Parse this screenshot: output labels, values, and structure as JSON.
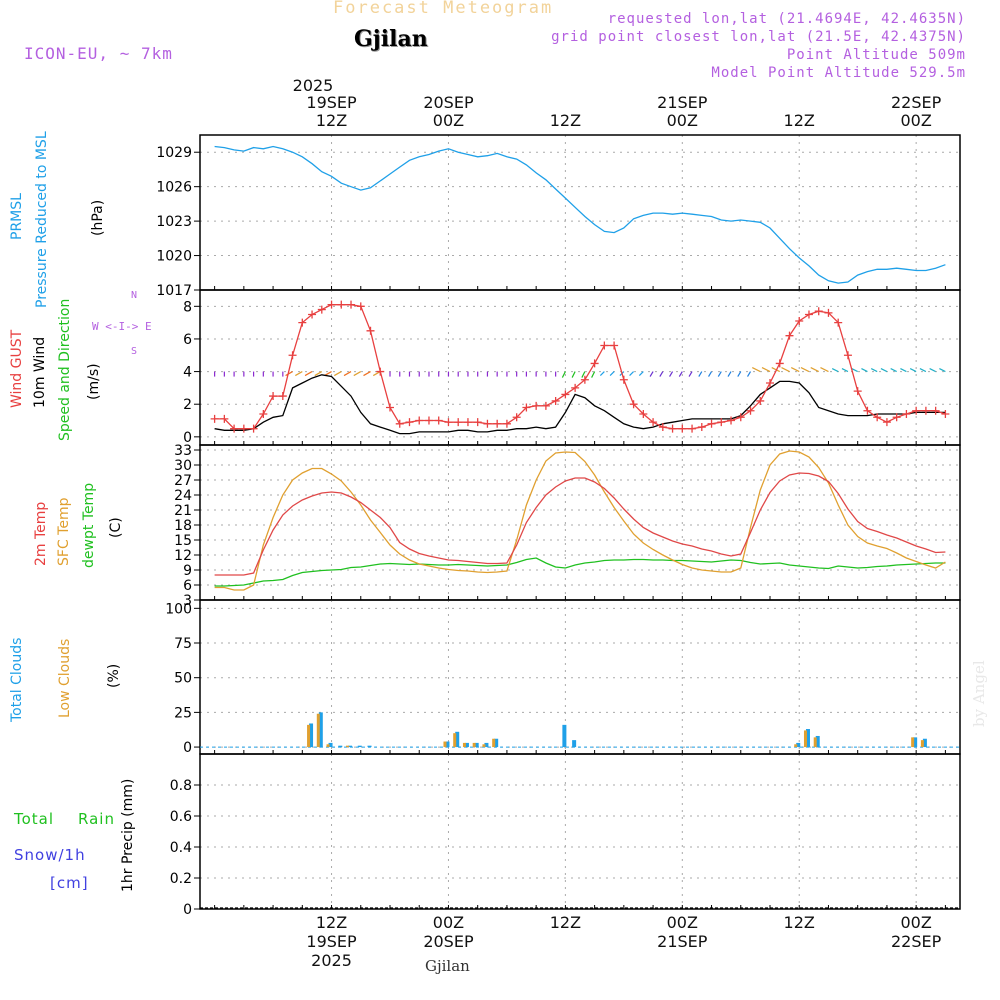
{
  "header": {
    "title": "Forecast Meteogram",
    "location": "Gjilan",
    "model": "ICON-EU, ~ 7km",
    "requested": "requested lon,lat (21.4694E, 42.4635N)",
    "gridpoint": "grid point closest lon,lat (21.5E, 42.4375N)",
    "point_alt": "Point Altitude 509m",
    "model_alt": "Model Point Altitude 529.5m",
    "footer_location": "Gjilan",
    "credit": "by Angel"
  },
  "time_axis": {
    "top_year": "2025",
    "ticks": [
      {
        "h": 12,
        "l1": "19SEP",
        "l2": "12Z"
      },
      {
        "h": 24,
        "l1": "20SEP",
        "l2": "00Z"
      },
      {
        "h": 36,
        "l1": "",
        "l2": "12Z"
      },
      {
        "h": 48,
        "l1": "21SEP",
        "l2": "00Z"
      },
      {
        "h": 60,
        "l1": "",
        "l2": "12Z"
      },
      {
        "h": 72,
        "l1": "22SEP",
        "l2": "00Z"
      }
    ],
    "bottom": [
      {
        "h": 12,
        "l1": "12Z",
        "l2": "19SEP",
        "l3": "2025"
      },
      {
        "h": 24,
        "l1": "00Z",
        "l2": "20SEP",
        "l3": ""
      },
      {
        "h": 36,
        "l1": "12Z",
        "l2": "",
        "l3": ""
      },
      {
        "h": 48,
        "l1": "00Z",
        "l2": "21SEP",
        "l3": ""
      },
      {
        "h": 60,
        "l1": "12Z",
        "l2": "",
        "l3": ""
      },
      {
        "h": 72,
        "l1": "00Z",
        "l2": "22SEP",
        "l3": ""
      }
    ]
  },
  "panel_labels": {
    "pressure": {
      "a": "PRMSL",
      "b": "Pressure Reduced to MSL",
      "unit": "(hPa)"
    },
    "wind": {
      "a": "Wind GUST",
      "b": "10m Wind",
      "c": "Speed and Direction",
      "unit": "(m/s)",
      "compass_ew": "W <-I-> E",
      "compass_n": "N",
      "compass_s": "S"
    },
    "temp": {
      "a": "2m Temp",
      "b": "SFC Temp",
      "c": "dewpt Temp",
      "unit": "(C)"
    },
    "cloud": {
      "a": "Total Clouds",
      "b": "Low Clouds",
      "unit": "(%)"
    },
    "precip": {
      "a": "Total",
      "b": "Rain",
      "c": "Snow/1h",
      "d": "[cm]",
      "unit": "1hr Precip (mm)"
    }
  },
  "colors": {
    "pressure": "#1fa0e8",
    "gust": "#e84040",
    "wind": "#000000",
    "temp2m": "#e04848",
    "sfc": "#e0a030",
    "dew": "#20c020",
    "total_cloud": "#1fa0e8",
    "low_cloud": "#e0a030",
    "rain": "#20c020",
    "snow": "#4040e0",
    "compass": "#b460e0"
  },
  "chart_data": [
    {
      "type": "line",
      "title": "PRMSL Pressure Reduced to MSL",
      "ylabel": "(hPa)",
      "ylim": [
        1017,
        1030.5
      ],
      "yticks": [
        1017,
        1020,
        1023,
        1026,
        1029
      ],
      "x": [
        0,
        1,
        2,
        3,
        4,
        5,
        6,
        7,
        8,
        9,
        10,
        11,
        12,
        13,
        14,
        15,
        16,
        17,
        18,
        19,
        20,
        21,
        22,
        23,
        24,
        25,
        26,
        27,
        28,
        29,
        30,
        31,
        32,
        33,
        34,
        35,
        36,
        37,
        38,
        39,
        40,
        41,
        42,
        43,
        44,
        45,
        46,
        47,
        48,
        49,
        50,
        51,
        52,
        53,
        54,
        55,
        56,
        57,
        58,
        59,
        60,
        61,
        62,
        63,
        64,
        65,
        66,
        67,
        68,
        69,
        70,
        71,
        72,
        73,
        74,
        75
      ],
      "series": [
        {
          "name": "PRMSL",
          "values": [
            1029.5,
            1029.4,
            1029.2,
            1029.1,
            1029.4,
            1029.3,
            1029.5,
            1029.3,
            1029.0,
            1028.6,
            1028.0,
            1027.3,
            1026.9,
            1026.3,
            1026.0,
            1025.7,
            1025.9,
            1026.5,
            1027.1,
            1027.7,
            1028.3,
            1028.6,
            1028.8,
            1029.1,
            1029.3,
            1029.0,
            1028.8,
            1028.6,
            1028.7,
            1028.9,
            1028.6,
            1028.4,
            1027.9,
            1027.2,
            1026.6,
            1025.8,
            1025.0,
            1024.2,
            1023.4,
            1022.7,
            1022.1,
            1022.0,
            1022.4,
            1023.2,
            1023.5,
            1023.7,
            1023.7,
            1023.6,
            1023.7,
            1023.6,
            1023.5,
            1023.4,
            1023.1,
            1023.0,
            1023.1,
            1023.0,
            1022.9,
            1022.4,
            1021.5,
            1020.6,
            1019.8,
            1019.1,
            1018.3,
            1017.8,
            1017.6,
            1017.7,
            1018.3,
            1018.6,
            1018.8,
            1018.8,
            1018.9,
            1018.8,
            1018.7,
            1018.7,
            1018.9,
            1019.2
          ]
        }
      ]
    },
    {
      "type": "line",
      "title": "Wind GUST / 10m Wind Speed and Direction",
      "ylabel": "(m/s)",
      "ylim": [
        -0.5,
        9
      ],
      "yticks": [
        0,
        2,
        4,
        6,
        8
      ],
      "x": [
        0,
        1,
        2,
        3,
        4,
        5,
        6,
        7,
        8,
        9,
        10,
        11,
        12,
        13,
        14,
        15,
        16,
        17,
        18,
        19,
        20,
        21,
        22,
        23,
        24,
        25,
        26,
        27,
        28,
        29,
        30,
        31,
        32,
        33,
        34,
        35,
        36,
        37,
        38,
        39,
        40,
        41,
        42,
        43,
        44,
        45,
        46,
        47,
        48,
        49,
        50,
        51,
        52,
        53,
        54,
        55,
        56,
        57,
        58,
        59,
        60,
        61,
        62,
        63,
        64,
        65,
        66,
        67,
        68,
        69,
        70,
        71,
        72,
        73,
        74,
        75
      ],
      "series": [
        {
          "name": "Wind GUST",
          "values": [
            1.1,
            1.1,
            0.5,
            0.5,
            0.5,
            1.4,
            2.5,
            2.5,
            5.0,
            7.0,
            7.5,
            7.8,
            8.1,
            8.1,
            8.1,
            8.0,
            6.5,
            4.0,
            1.8,
            0.8,
            0.9,
            1.0,
            1.0,
            1.0,
            0.9,
            0.9,
            0.9,
            0.9,
            0.8,
            0.8,
            0.8,
            1.2,
            1.8,
            1.9,
            1.9,
            2.2,
            2.6,
            3.0,
            3.5,
            4.5,
            5.6,
            5.6,
            3.5,
            2.0,
            1.4,
            0.9,
            0.6,
            0.5,
            0.5,
            0.5,
            0.6,
            0.8,
            0.9,
            1.0,
            1.2,
            1.6,
            2.2,
            3.3,
            4.5,
            6.2,
            7.1,
            7.5,
            7.7,
            7.6,
            7.0,
            5.0,
            2.8,
            1.6,
            1.2,
            0.9,
            1.2,
            1.4,
            1.6,
            1.6,
            1.6,
            1.4
          ]
        },
        {
          "name": "10m Wind",
          "values": [
            0.5,
            0.4,
            0.4,
            0.4,
            0.5,
            0.9,
            1.2,
            1.3,
            3.0,
            3.3,
            3.6,
            3.8,
            3.7,
            3.1,
            2.5,
            1.5,
            0.8,
            0.6,
            0.4,
            0.2,
            0.2,
            0.3,
            0.3,
            0.3,
            0.3,
            0.4,
            0.4,
            0.3,
            0.3,
            0.4,
            0.4,
            0.5,
            0.5,
            0.6,
            0.5,
            0.6,
            1.5,
            2.6,
            2.4,
            1.9,
            1.6,
            1.2,
            0.8,
            0.6,
            0.5,
            0.6,
            0.8,
            0.9,
            1.0,
            1.1,
            1.1,
            1.1,
            1.1,
            1.1,
            1.3,
            1.9,
            2.6,
            3.0,
            3.4,
            3.4,
            3.3,
            2.7,
            1.8,
            1.6,
            1.4,
            1.3,
            1.3,
            1.3,
            1.4,
            1.4,
            1.4,
            1.4,
            1.5,
            1.5,
            1.5,
            1.5
          ]
        }
      ]
    },
    {
      "type": "line",
      "title": "2m Temp / SFC Temp / dewpt Temp",
      "ylabel": "(C)",
      "ylim": [
        3,
        34
      ],
      "yticks": [
        3,
        6,
        9,
        12,
        15,
        18,
        21,
        24,
        27,
        30,
        33
      ],
      "x": [
        0,
        1,
        2,
        3,
        4,
        5,
        6,
        7,
        8,
        9,
        10,
        11,
        12,
        13,
        14,
        15,
        16,
        17,
        18,
        19,
        20,
        21,
        22,
        23,
        24,
        25,
        26,
        27,
        28,
        29,
        30,
        31,
        32,
        33,
        34,
        35,
        36,
        37,
        38,
        39,
        40,
        41,
        42,
        43,
        44,
        45,
        46,
        47,
        48,
        49,
        50,
        51,
        52,
        53,
        54,
        55,
        56,
        57,
        58,
        59,
        60,
        61,
        62,
        63,
        64,
        65,
        66,
        67,
        68,
        69,
        70,
        71,
        72,
        73,
        74,
        75
      ],
      "series": [
        {
          "name": "2m Temp",
          "values": [
            8.0,
            8.0,
            8.0,
            8.0,
            8.4,
            13.0,
            17.0,
            20.0,
            21.8,
            23.0,
            23.8,
            24.4,
            24.6,
            24.4,
            23.6,
            22.5,
            21.0,
            19.5,
            17.5,
            14.5,
            13.2,
            12.3,
            11.8,
            11.4,
            11.0,
            10.9,
            10.7,
            10.5,
            10.3,
            10.3,
            10.4,
            14.0,
            18.5,
            21.5,
            24.0,
            25.6,
            26.8,
            27.4,
            27.4,
            26.6,
            25.3,
            23.4,
            21.2,
            19.2,
            17.5,
            16.4,
            15.6,
            14.8,
            14.2,
            13.8,
            13.2,
            12.8,
            12.2,
            11.8,
            12.2,
            16.5,
            21.0,
            24.5,
            26.8,
            28.0,
            28.4,
            28.3,
            27.8,
            26.7,
            24.3,
            21.2,
            18.7,
            17.3,
            16.7,
            16.0,
            15.4,
            14.6,
            13.8,
            13.2,
            12.5,
            12.6
          ]
        },
        {
          "name": "SFC Temp",
          "values": [
            5.5,
            5.5,
            5.0,
            5.0,
            6.0,
            14.0,
            19.5,
            24.0,
            27.0,
            28.4,
            29.3,
            29.3,
            28.2,
            26.8,
            24.6,
            22.0,
            19.0,
            16.5,
            14.0,
            12.2,
            11.0,
            10.2,
            9.8,
            9.4,
            9.1,
            8.9,
            8.8,
            8.6,
            8.5,
            8.6,
            8.8,
            15.0,
            22.0,
            27.0,
            30.8,
            32.4,
            32.6,
            32.5,
            30.7,
            28.0,
            24.6,
            21.5,
            18.8,
            16.2,
            14.4,
            13.1,
            12.0,
            11.0,
            10.1,
            9.4,
            9.0,
            8.8,
            8.6,
            8.6,
            9.4,
            17.5,
            25.0,
            30.0,
            32.2,
            32.8,
            32.6,
            31.6,
            29.5,
            26.4,
            22.0,
            18.0,
            15.7,
            14.4,
            13.8,
            13.3,
            12.4,
            11.4,
            10.7,
            10.0,
            9.4,
            10.6
          ]
        },
        {
          "name": "dewpt Temp",
          "values": [
            5.8,
            5.8,
            5.9,
            6.0,
            6.4,
            6.8,
            6.9,
            7.1,
            7.9,
            8.5,
            8.7,
            8.9,
            9.0,
            9.1,
            9.5,
            9.6,
            9.9,
            10.2,
            10.3,
            10.2,
            10.1,
            10.2,
            10.1,
            10.0,
            10.0,
            10.1,
            10.0,
            9.9,
            9.8,
            9.9,
            10.0,
            10.5,
            11.1,
            11.4,
            10.4,
            9.6,
            9.4,
            10.0,
            10.4,
            10.6,
            10.9,
            11.0,
            11.0,
            11.1,
            11.1,
            11.0,
            11.0,
            10.9,
            10.9,
            10.8,
            10.7,
            10.6,
            10.8,
            11.0,
            10.9,
            10.5,
            10.2,
            10.3,
            10.4,
            10.0,
            9.8,
            9.6,
            9.4,
            9.3,
            9.8,
            9.6,
            9.4,
            9.5,
            9.7,
            9.8,
            10.0,
            10.1,
            10.2,
            10.3,
            10.4,
            10.4
          ]
        }
      ]
    },
    {
      "type": "bar",
      "title": "Total Clouds / Low Clouds",
      "ylabel": "(%)",
      "ylim": [
        -5,
        106
      ],
      "yticks": [
        0,
        25,
        50,
        75,
        100
      ],
      "x": [
        10,
        11,
        12,
        13,
        14,
        15,
        16,
        24,
        25,
        26,
        27,
        28,
        29,
        36,
        37,
        60,
        61,
        62,
        72,
        73
      ],
      "series": [
        {
          "name": "Total Clouds",
          "values": [
            17,
            25,
            3,
            1,
            1,
            1,
            1,
            4,
            11,
            3,
            3,
            3,
            6,
            16,
            5,
            3,
            13,
            8,
            7,
            6
          ]
        },
        {
          "name": "Low Clouds",
          "values": [
            16,
            24,
            2,
            0,
            1,
            0,
            0,
            4,
            10,
            3,
            3,
            2,
            6,
            0,
            0,
            2,
            12,
            7,
            7,
            5
          ]
        }
      ]
    },
    {
      "type": "bar",
      "title": "Total Rain / Snow 1h",
      "ylabel": "1hr Precip (mm)",
      "ylim": [
        0,
        1.0
      ],
      "yticks": [
        0,
        0.2,
        0.4,
        0.6,
        0.8
      ],
      "x": [],
      "series": [
        {
          "name": "Total Rain",
          "values": []
        },
        {
          "name": "Snow/1h",
          "values": []
        }
      ]
    }
  ]
}
